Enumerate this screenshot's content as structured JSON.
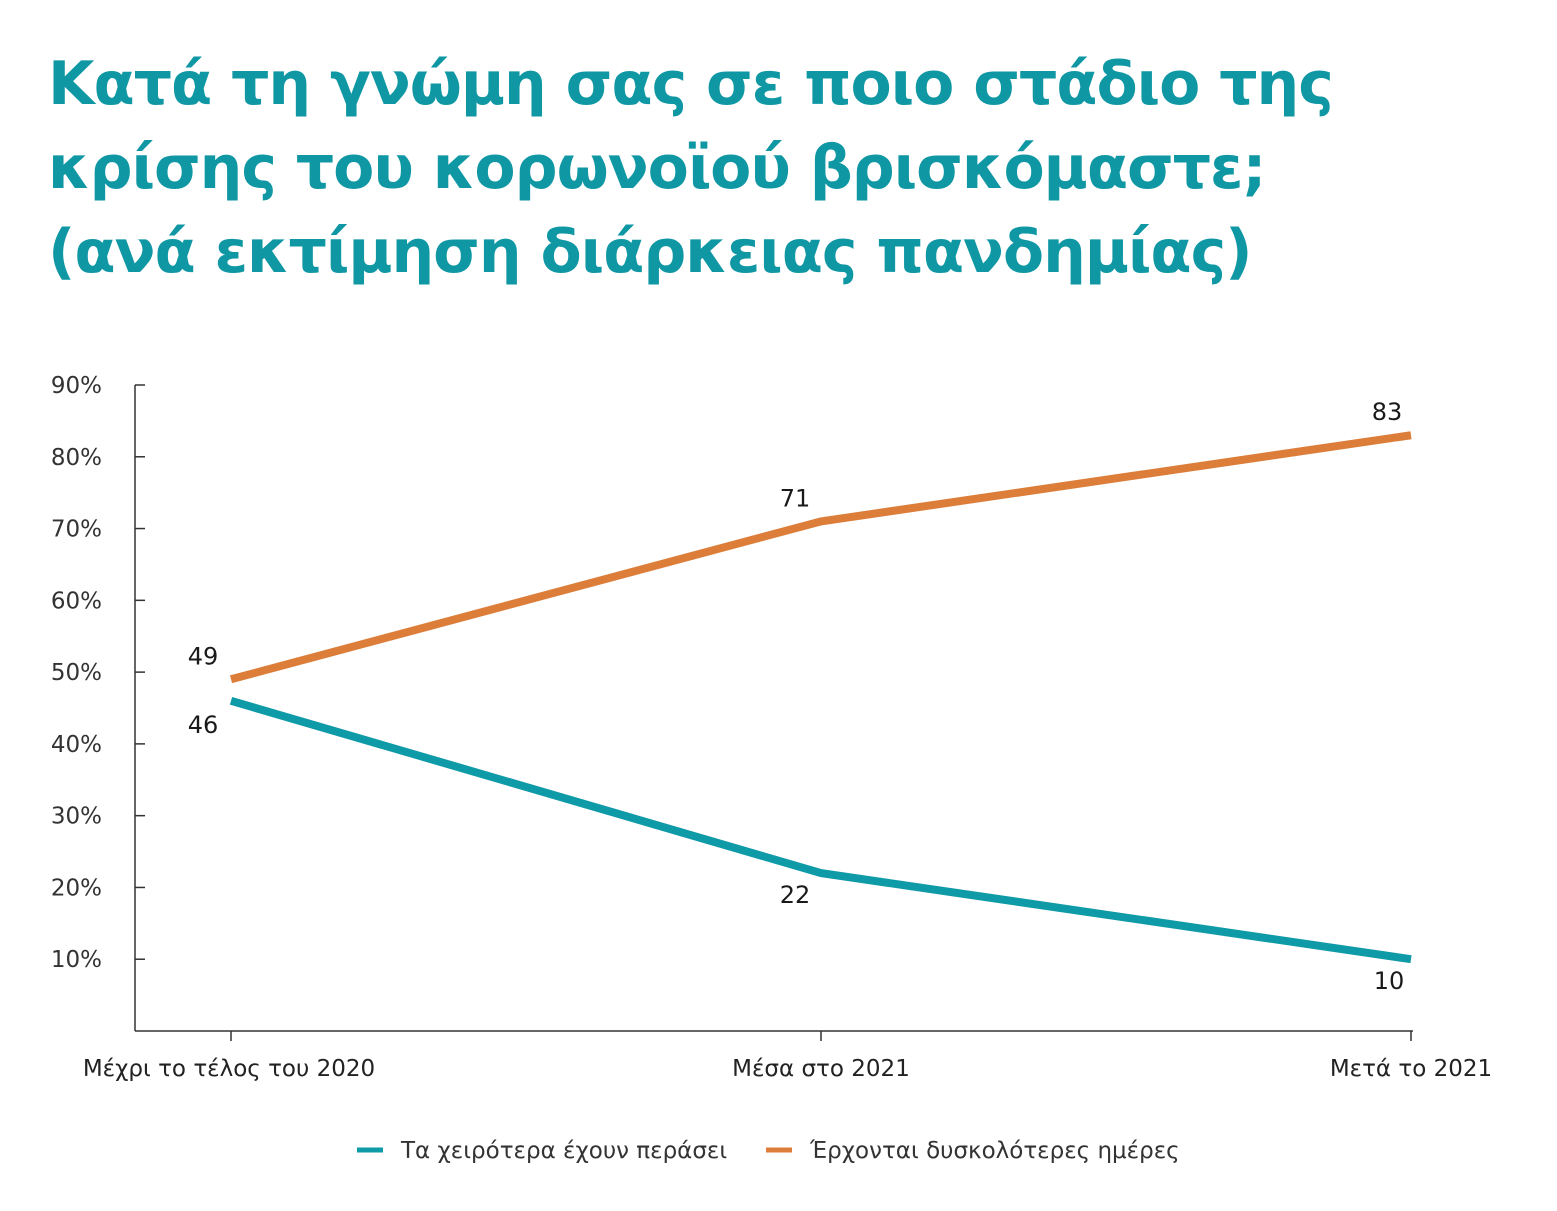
{
  "title_lines": [
    "Κατά τη γνώμη σας σε ποιο στάδιο της",
    "κρίσης του κορωνοϊού βρισκόμαστε;",
    "(ανά εκτίμηση διάρκειας πανδημίας)"
  ],
  "chart_data": {
    "type": "line",
    "title": "Κατά τη γνώμη σας σε ποιο στάδιο της κρίσης του κορωνοϊού βρισκόμαστε; (ανά εκτίμηση διάρκειας πανδημίας)",
    "categories": [
      "Μέχρι το τέλος του 2020",
      "Μέσα στο 2021",
      "Μετά το 2021"
    ],
    "series": [
      {
        "name": "Τα χειρότερα έχουν περάσει",
        "values": [
          46,
          22,
          10
        ],
        "color": "#0f9aa8"
      },
      {
        "name": "Έρχονται δυσκολότερες ημέρες",
        "values": [
          49,
          71,
          83
        ],
        "color": "#dc7e3a"
      }
    ],
    "y_ticks": [
      "10%",
      "20%",
      "30%",
      "40%",
      "50%",
      "60%",
      "70%",
      "80%",
      "90%"
    ],
    "y_tick_values": [
      10,
      20,
      30,
      40,
      50,
      60,
      70,
      80,
      90
    ],
    "ylim": [
      0,
      90
    ],
    "xlabel": "",
    "ylabel": "",
    "grid": false,
    "legend_position": "bottom"
  },
  "colors": {
    "title": "#0f97a4",
    "axis": "#333333"
  }
}
